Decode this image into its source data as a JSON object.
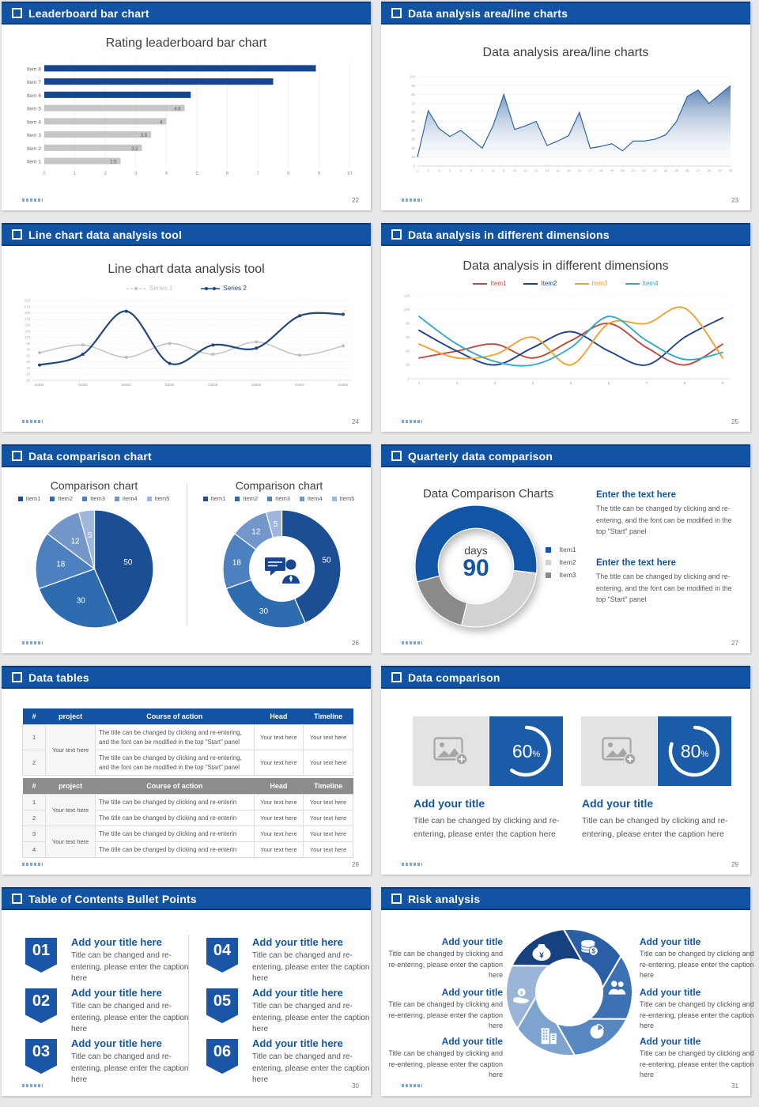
{
  "canvas": {
    "bg": "#E7E8EA",
    "accent": "#1253A3"
  },
  "slides": {
    "s1": {
      "header": "Leaderboard bar chart",
      "page_no": "22",
      "title": "Rating leaderboard bar chart",
      "chart_data": {
        "type": "barh",
        "title": "Rating leaderboard bar chart",
        "categories": [
          "Item 8",
          "Item 7",
          "Item 6",
          "Item 5",
          "Item 4",
          "Item 3",
          "Item 2",
          "Item 1"
        ],
        "values": [
          8.9,
          7.5,
          4.8,
          4.6,
          4,
          3.5,
          3.2,
          2.5
        ],
        "value_labels": [
          null,
          null,
          null,
          "4.6",
          "4",
          "3.5",
          "3.2",
          "2.5"
        ],
        "colors": [
          "#17458F",
          "#17458F",
          "#17458F",
          "#C6C6C6",
          "#C6C6C6",
          "#C6C6C6",
          "#C6C6C6",
          "#C6C6C6"
        ],
        "xlim": [
          0,
          10
        ],
        "xticks": [
          0,
          1,
          2,
          3,
          4,
          5,
          6,
          7,
          8,
          9,
          10
        ]
      }
    },
    "s2": {
      "header": "Data analysis area/line charts",
      "page_no": "23",
      "title": "Data analysis area/line charts",
      "chart_data": {
        "type": "area",
        "title": "Data analysis area/line charts",
        "x": [
          1,
          2,
          3,
          4,
          5,
          6,
          7,
          8,
          9,
          10,
          11,
          12,
          13,
          14,
          15,
          16,
          17,
          18,
          19,
          20,
          21,
          22,
          23,
          24,
          25,
          26,
          27,
          28,
          29,
          30
        ],
        "values": [
          10,
          62,
          42,
          33,
          40,
          30,
          20,
          45,
          80,
          41,
          45,
          50,
          23,
          28,
          34,
          60,
          20,
          22,
          25,
          17,
          28,
          28,
          30,
          35,
          50,
          78,
          85,
          70,
          80,
          90
        ],
        "ylim": [
          0,
          100
        ],
        "yticks": [
          0,
          10,
          20,
          30,
          40,
          50,
          60,
          70,
          80,
          90,
          100
        ],
        "line_color": "#2E63A8",
        "fill_top": "#4E79B0"
      }
    },
    "s3": {
      "header": "Line chart data analysis tool",
      "page_no": "24",
      "title": "Line chart data analysis tool",
      "legend": [
        {
          "label": "Series 1",
          "color": "#BFBFBF"
        },
        {
          "label": "Series 2",
          "color": "#24477F"
        }
      ],
      "chart_data": {
        "type": "line",
        "title": "Line chart data analysis tool",
        "smooth": true,
        "categories": [
          "Data1",
          "Data2",
          "Data3",
          "Data4",
          "Data5",
          "Data6",
          "Data7",
          "Data8"
        ],
        "ylim": [
          -30,
          230
        ],
        "yticks": [
          230,
          210,
          190,
          170,
          150,
          130,
          110,
          90,
          70,
          50,
          30,
          10,
          -10,
          -30
        ],
        "series": [
          {
            "name": "Series 1",
            "color": "#BFBFBF",
            "width": 1.4,
            "marker": true,
            "values": [
              60,
              85,
              45,
              90,
              55,
              95,
              52,
              82
            ]
          },
          {
            "name": "Series 2",
            "color": "#24477F",
            "width": 2.2,
            "marker": true,
            "values": [
              20,
              55,
              195,
              25,
              85,
              75,
              180,
              185
            ]
          }
        ]
      }
    },
    "s4": {
      "header": "Data analysis in different dimensions",
      "page_no": "25",
      "title": "Data analysis in different dimensions",
      "legend": [
        {
          "label": "Item1",
          "color": "#BE4B40"
        },
        {
          "label": "Item2",
          "color": "#1F4090"
        },
        {
          "label": "Item3",
          "color": "#F0A232"
        },
        {
          "label": "Item4",
          "color": "#35A9C6"
        }
      ],
      "chart_data": {
        "type": "line",
        "title": "Data analysis in different dimensions",
        "smooth": true,
        "categories": [
          "1",
          "2",
          "3",
          "4",
          "5",
          "6",
          "7",
          "8",
          "9"
        ],
        "ylim": [
          0,
          120
        ],
        "yticks": [
          0,
          20,
          40,
          60,
          80,
          100,
          120
        ],
        "series": [
          {
            "name": "Item1",
            "color": "#BE4B40",
            "width": 1.9,
            "values": [
              30,
              40,
              50,
              30,
              55,
              80,
              45,
              20,
              50
            ]
          },
          {
            "name": "Item2",
            "color": "#1F4090",
            "width": 1.9,
            "values": [
              70,
              40,
              20,
              45,
              68,
              40,
              20,
              60,
              88
            ]
          },
          {
            "name": "Item3",
            "color": "#F0A232",
            "width": 1.9,
            "values": [
              50,
              30,
              35,
              60,
              20,
              80,
              80,
              102,
              30
            ]
          },
          {
            "name": "Item4",
            "color": "#35A9C6",
            "width": 1.9,
            "values": [
              90,
              50,
              25,
              20,
              45,
              90,
              55,
              28,
              38
            ]
          }
        ]
      }
    },
    "s5": {
      "header": "Data comparison chart",
      "page_no": "26",
      "left_title": "Comparison chart",
      "right_title": "Comparison chart",
      "legend": [
        {
          "label": "Item1",
          "color": "#1B4E93"
        },
        {
          "label": "Item2",
          "color": "#2E6CB0"
        },
        {
          "label": "Item3",
          "color": "#4C80BE"
        },
        {
          "label": "Item4",
          "color": "#7397CB"
        },
        {
          "label": "Item5",
          "color": "#9FB7DC"
        }
      ],
      "chart_data": [
        {
          "type": "pie",
          "title": "Comparison chart",
          "values": [
            50,
            30,
            18,
            12,
            5
          ],
          "labels": [
            "50",
            "30",
            "18",
            "12",
            "5"
          ],
          "colors": [
            "#1B4E93",
            "#2E6CB0",
            "#4C80BE",
            "#7397CB",
            "#9FB7DC"
          ],
          "start": 0
        },
        {
          "type": "pie",
          "title": "Comparison chart",
          "inner": 0.55,
          "values": [
            50,
            30,
            18,
            12,
            5
          ],
          "labels": [
            "50",
            "30",
            "18",
            "12",
            "5"
          ],
          "colors": [
            "#1B4E93",
            "#2E6CB0",
            "#4C80BE",
            "#7397CB",
            "#9FB7DC"
          ],
          "start": 0
        }
      ]
    },
    "s6": {
      "header": "Quarterly data comparison",
      "page_no": "27",
      "chart_title": "Data Comparison Charts",
      "center_label": "days",
      "center_value": "90",
      "legend": [
        {
          "label": "Item1",
          "color": "#1255A5"
        },
        {
          "label": "Item2",
          "color": "#D2D2D2"
        },
        {
          "label": "Item3",
          "color": "#8A8A8A"
        }
      ],
      "chart_data": {
        "type": "pie",
        "title": "Data Comparison Charts",
        "inner": 0.62,
        "start": 255,
        "values": [
          56,
          27,
          17
        ],
        "colors": [
          "#1255A5",
          "#D2D2D2",
          "#8A8A8A"
        ]
      },
      "blocks": [
        {
          "heading": "Enter the text here",
          "body": "The title can be changed by clicking and re-entering, and the font can be modified in the top \"Start\" panel"
        },
        {
          "heading": "Enter the text here",
          "body": "The title can be changed by clicking and re-entering, and the font can be modified in the top \"Start\" panel"
        }
      ]
    },
    "s7": {
      "header": "Data tables",
      "page_no": "28",
      "table1": {
        "columns": [
          "#",
          "project",
          "Course of action",
          "Head",
          "Timeline"
        ],
        "widths": [
          "7%",
          "15%",
          "48%",
          "15%",
          "15%"
        ],
        "rows": [
          [
            "1",
            {
              "text": "Your text here",
              "rowspan": 2
            },
            "The title can be changed by clicking and re-entering, and the font can be modified in the top \"Start\" panel",
            "Your text here",
            "Your text here"
          ],
          [
            "2",
            null,
            "The title can be changed by clicking and re-entering, and the font can be modified in the top \"Start\" panel",
            "Your text here",
            "Your text here"
          ]
        ]
      },
      "table2": {
        "columns": [
          "#",
          "project",
          "Course of action",
          "Head",
          "Timeline"
        ],
        "widths": [
          "7%",
          "15%",
          "48%",
          "15%",
          "15%"
        ],
        "rows": [
          [
            "1",
            {
              "text": "Your text here",
              "rowspan": 2
            },
            "The title can be changed by clicking and re-enterin",
            "Your text here",
            "Your text here"
          ],
          [
            "2",
            null,
            "The title can be changed by clicking and re-enterin",
            "Your text here",
            "Your text here"
          ],
          [
            "3",
            {
              "text": "Your text here",
              "rowspan": 2
            },
            "The title can be changed by clicking and re-enterin",
            "Your text here",
            "Your text here"
          ],
          [
            "4",
            null,
            "The title can be changed by clicking and re-enterin",
            "Your text here",
            "Your text here"
          ]
        ]
      }
    },
    "s8": {
      "header": "Data comparison",
      "page_no": "29",
      "cards": [
        {
          "percent": "60",
          "unit": "%",
          "ring": {
            "type": "ring",
            "pct": 60
          },
          "title": "Add your title",
          "caption": "Title can be changed by clicking and re-entering, please enter the caption here"
        },
        {
          "percent": "80",
          "unit": "%",
          "ring": {
            "type": "ring",
            "pct": 80
          },
          "title": "Add your title",
          "caption": "Title can be changed by clicking and re-entering, please enter the caption here"
        }
      ]
    },
    "s9": {
      "header": "Table of Contents Bullet Points",
      "page_no": "30",
      "items": [
        {
          "num": "01",
          "title": "Add your title here",
          "caption": "Title can be changed and re-entering, please enter the caption here"
        },
        {
          "num": "02",
          "title": "Add your title here",
          "caption": "Title can be changed and re-entering, please enter the caption here"
        },
        {
          "num": "03",
          "title": "Add your title here",
          "caption": "Title can be changed and re-entering, please enter the caption here"
        },
        {
          "num": "04",
          "title": "Add your title here",
          "caption": "Title can be changed and re-entering, please enter the caption here"
        },
        {
          "num": "05",
          "title": "Add your title here",
          "caption": "Title can be changed and re-entering, please enter the caption here"
        },
        {
          "num": "06",
          "title": "Add your title here",
          "caption": "Title can be changed and re-entering, please enter the caption here"
        }
      ]
    },
    "s10": {
      "header": "Risk analysis",
      "page_no": "31",
      "pinwheel": {
        "type": "pinwheel",
        "colors": [
          "#16407E",
          "#2A5FA5",
          "#3C72B4",
          "#5787C1",
          "#7FA3CF",
          "#9BB5D9"
        ]
      },
      "icons": [
        {
          "name": "money-bag-icon",
          "glyph": "¥"
        },
        {
          "name": "coins-icon",
          "glyph": "$"
        },
        {
          "name": "people-icon",
          "glyph": ""
        },
        {
          "name": "pie-chart-icon",
          "glyph": ""
        },
        {
          "name": "building-icon",
          "glyph": ""
        },
        {
          "name": "hand-coin-icon",
          "glyph": "¥"
        }
      ],
      "blocks": [
        {
          "title": "Add your title",
          "caption": "Title can be changed by clicking and re-entering, please enter the caption here"
        },
        {
          "title": "Add your title",
          "caption": "Title can be changed by clicking and re-entering, please enter the caption here"
        },
        {
          "title": "Add your title",
          "caption": "Title can be changed by clicking and re-entering, please enter the caption here"
        },
        {
          "title": "Add your title",
          "caption": "Title can be changed by clicking and re-entering, please enter the caption here"
        },
        {
          "title": "Add your title",
          "caption": "Title can be changed by clicking and re-entering, please enter the caption here"
        },
        {
          "title": "Add your title",
          "caption": "Title can be changed by clicking and re-entering, please enter the caption here"
        }
      ]
    }
  }
}
